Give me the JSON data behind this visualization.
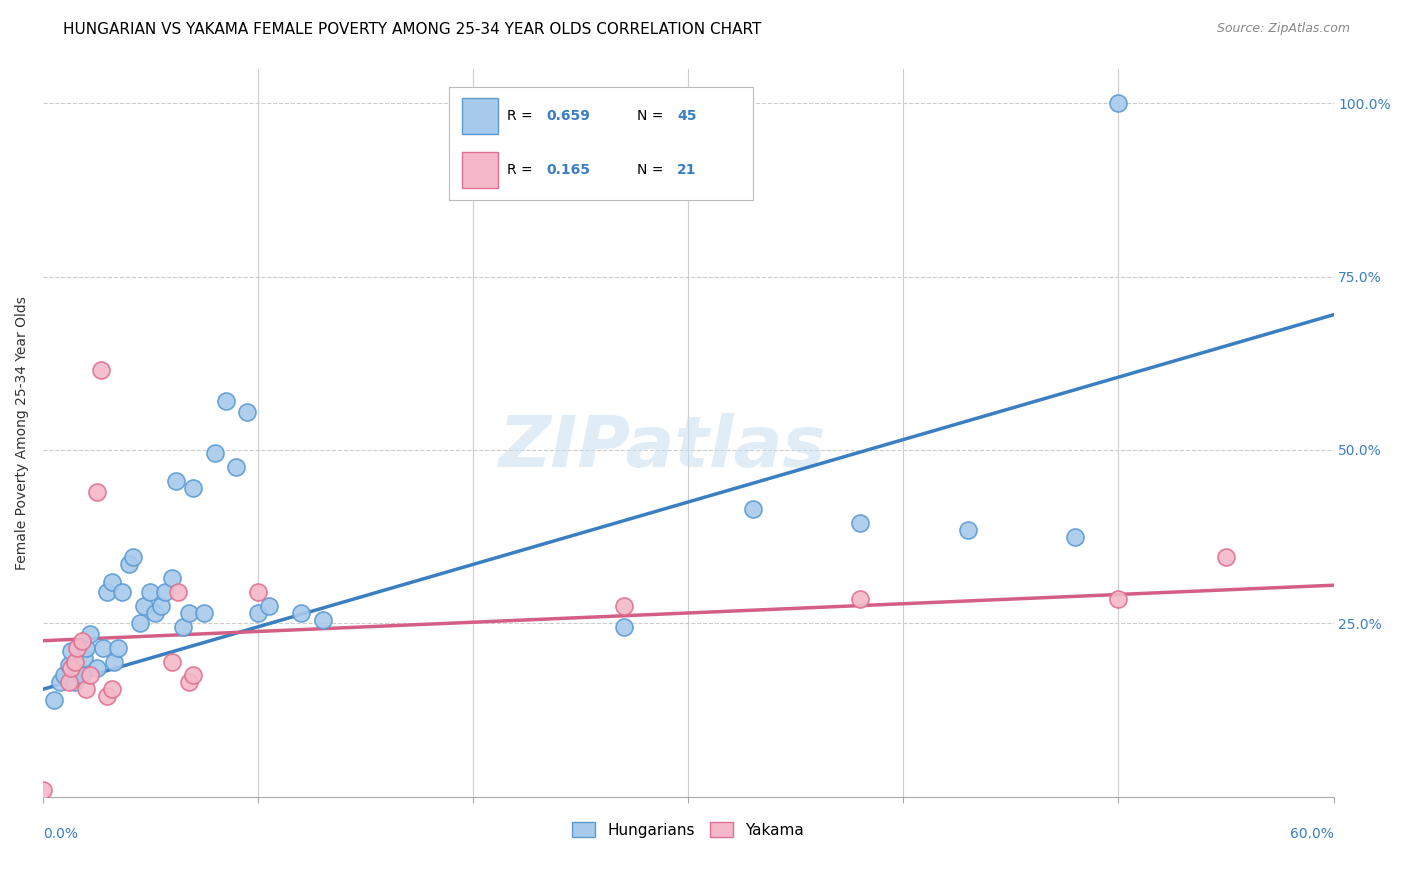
{
  "title": "HUNGARIAN VS YAKAMA FEMALE POVERTY AMONG 25-34 YEAR OLDS CORRELATION CHART",
  "source": "Source: ZipAtlas.com",
  "ylabel": "Female Poverty Among 25-34 Year Olds",
  "watermark": "ZIPatlas",
  "blue_color": "#a8caec",
  "pink_color": "#f4b8c8",
  "blue_edge_color": "#5b9bd5",
  "pink_edge_color": "#e07090",
  "blue_line_color": "#3a7fc1",
  "pink_line_color": "#d45f85",
  "rn_color": "#3a7fc1",
  "blue_scatter": [
    [
      0.005,
      0.14
    ],
    [
      0.008,
      0.165
    ],
    [
      0.01,
      0.175
    ],
    [
      0.012,
      0.19
    ],
    [
      0.013,
      0.21
    ],
    [
      0.015,
      0.165
    ],
    [
      0.018,
      0.175
    ],
    [
      0.019,
      0.2
    ],
    [
      0.02,
      0.215
    ],
    [
      0.022,
      0.235
    ],
    [
      0.025,
      0.185
    ],
    [
      0.028,
      0.215
    ],
    [
      0.03,
      0.295
    ],
    [
      0.032,
      0.31
    ],
    [
      0.033,
      0.195
    ],
    [
      0.035,
      0.215
    ],
    [
      0.037,
      0.295
    ],
    [
      0.04,
      0.335
    ],
    [
      0.042,
      0.345
    ],
    [
      0.045,
      0.25
    ],
    [
      0.047,
      0.275
    ],
    [
      0.05,
      0.295
    ],
    [
      0.052,
      0.265
    ],
    [
      0.055,
      0.275
    ],
    [
      0.057,
      0.295
    ],
    [
      0.06,
      0.315
    ],
    [
      0.062,
      0.455
    ],
    [
      0.065,
      0.245
    ],
    [
      0.068,
      0.265
    ],
    [
      0.07,
      0.445
    ],
    [
      0.075,
      0.265
    ],
    [
      0.08,
      0.495
    ],
    [
      0.085,
      0.57
    ],
    [
      0.09,
      0.475
    ],
    [
      0.095,
      0.555
    ],
    [
      0.1,
      0.265
    ],
    [
      0.105,
      0.275
    ],
    [
      0.12,
      0.265
    ],
    [
      0.13,
      0.255
    ],
    [
      0.27,
      0.245
    ],
    [
      0.33,
      0.415
    ],
    [
      0.38,
      0.395
    ],
    [
      0.43,
      0.385
    ],
    [
      0.48,
      0.375
    ],
    [
      0.5,
      1.0
    ]
  ],
  "pink_scatter": [
    [
      0.0,
      0.01
    ],
    [
      0.012,
      0.165
    ],
    [
      0.013,
      0.185
    ],
    [
      0.015,
      0.195
    ],
    [
      0.016,
      0.215
    ],
    [
      0.018,
      0.225
    ],
    [
      0.02,
      0.155
    ],
    [
      0.022,
      0.175
    ],
    [
      0.025,
      0.44
    ],
    [
      0.027,
      0.615
    ],
    [
      0.03,
      0.145
    ],
    [
      0.032,
      0.155
    ],
    [
      0.06,
      0.195
    ],
    [
      0.063,
      0.295
    ],
    [
      0.068,
      0.165
    ],
    [
      0.07,
      0.175
    ],
    [
      0.1,
      0.295
    ],
    [
      0.27,
      0.275
    ],
    [
      0.38,
      0.285
    ],
    [
      0.5,
      0.285
    ],
    [
      0.55,
      0.345
    ]
  ],
  "blue_line": [
    [
      0.0,
      0.155
    ],
    [
      0.6,
      0.695
    ]
  ],
  "pink_line": [
    [
      0.0,
      0.225
    ],
    [
      0.6,
      0.305
    ]
  ],
  "xlim": [
    0.0,
    0.6
  ],
  "ylim": [
    0.0,
    1.05
  ],
  "yticks": [
    0.25,
    0.5,
    0.75,
    1.0
  ],
  "xticks": [
    0.0,
    0.1,
    0.2,
    0.3,
    0.4,
    0.5,
    0.6
  ]
}
